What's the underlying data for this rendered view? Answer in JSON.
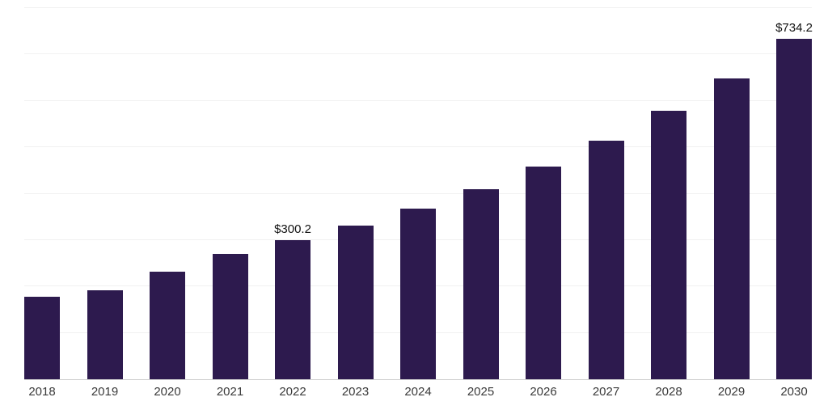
{
  "chart_data": {
    "type": "bar",
    "categories": [
      "2018",
      "2019",
      "2020",
      "2021",
      "2022",
      "2023",
      "2024",
      "2025",
      "2026",
      "2027",
      "2028",
      "2029",
      "2030"
    ],
    "values": [
      178,
      192,
      231,
      270,
      300.2,
      331,
      368,
      410,
      458,
      514,
      578,
      648,
      734.2
    ],
    "data_labels": {
      "2022": "$300.2",
      "2030": "$734.2"
    },
    "bar_color": "#2d1a4e",
    "ylim": [
      0,
      800
    ],
    "grid": "horizontal",
    "grid_step": 100,
    "legend": "none",
    "xlabel": "",
    "ylabel": ""
  }
}
